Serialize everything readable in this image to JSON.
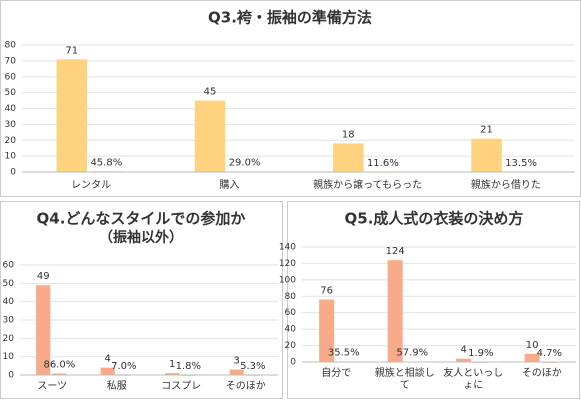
{
  "charts": [
    {
      "type": "bar",
      "title": "Q3.袴・振袖の準備方法",
      "categories": [
        "レンタル",
        "購入",
        "親族から譲ってもらった",
        "親族から借りた"
      ],
      "series": [
        {
          "color": "#fed27f",
          "values": [
            71,
            45,
            18,
            21
          ]
        },
        {
          "color": "#fed27f",
          "values": [
            0.458,
            0.29,
            0.116,
            0.135
          ],
          "value_labels": [
            "45.8%",
            "29.0%",
            "11.6%",
            "13.5%"
          ]
        }
      ],
      "ylim": [
        0,
        80
      ],
      "yticks": [
        0,
        10,
        20,
        30,
        40,
        50,
        60,
        70,
        80
      ],
      "grid": true
    },
    {
      "type": "bar",
      "title": "Q4.どんなスタイルでの参加か",
      "subtitle": "（振袖以外）",
      "categories": [
        "スーツ",
        "私服",
        "コスプレ",
        "そのほか"
      ],
      "series": [
        {
          "color": "#f7ab8a",
          "values": [
            49,
            4,
            1,
            3
          ]
        },
        {
          "color": "#f7ab8a",
          "values": [
            0.86,
            0.07,
            0.018,
            0.053
          ],
          "value_labels": [
            "86.0%",
            "7.0%",
            "1.8%",
            "5.3%"
          ]
        }
      ],
      "ylim": [
        0,
        60
      ],
      "yticks": [
        0,
        10,
        20,
        30,
        40,
        50,
        60
      ],
      "grid": true
    },
    {
      "type": "bar",
      "title": "Q5.成人式の衣装の決め方",
      "categories": [
        "自分で",
        "親族と相談して",
        "友人といっしょに",
        "そのほか"
      ],
      "series": [
        {
          "color": "#f7ab8a",
          "values": [
            76,
            124,
            4,
            10
          ]
        },
        {
          "color": "#f7ab8a",
          "values": [
            0.355,
            0.579,
            0.019,
            0.047
          ],
          "value_labels": [
            "35.5%",
            "57.9%",
            "1.9%",
            "4.7%"
          ]
        }
      ],
      "ylim": [
        0,
        140
      ],
      "yticks": [
        0,
        20,
        40,
        60,
        80,
        100,
        120,
        140
      ],
      "grid": true
    }
  ]
}
